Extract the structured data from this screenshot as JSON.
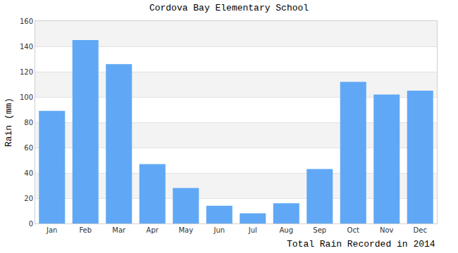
{
  "chart_data": {
    "type": "bar",
    "title": "Cordova Bay Elementary School",
    "ylabel": "Rain (mm)",
    "xlabel": "Total Rain Recorded in 2014",
    "categories": [
      "Jan",
      "Feb",
      "Mar",
      "Apr",
      "May",
      "Jun",
      "Jul",
      "Aug",
      "Sep",
      "Oct",
      "Nov",
      "Dec"
    ],
    "values": [
      89,
      145,
      126,
      47,
      28,
      14,
      8,
      16,
      43,
      112,
      102,
      105
    ],
    "color": "#60a8f5",
    "ylim": [
      0,
      160
    ],
    "yticks": [
      0,
      20,
      40,
      60,
      80,
      100,
      120,
      140,
      160
    ],
    "grid": true
  }
}
